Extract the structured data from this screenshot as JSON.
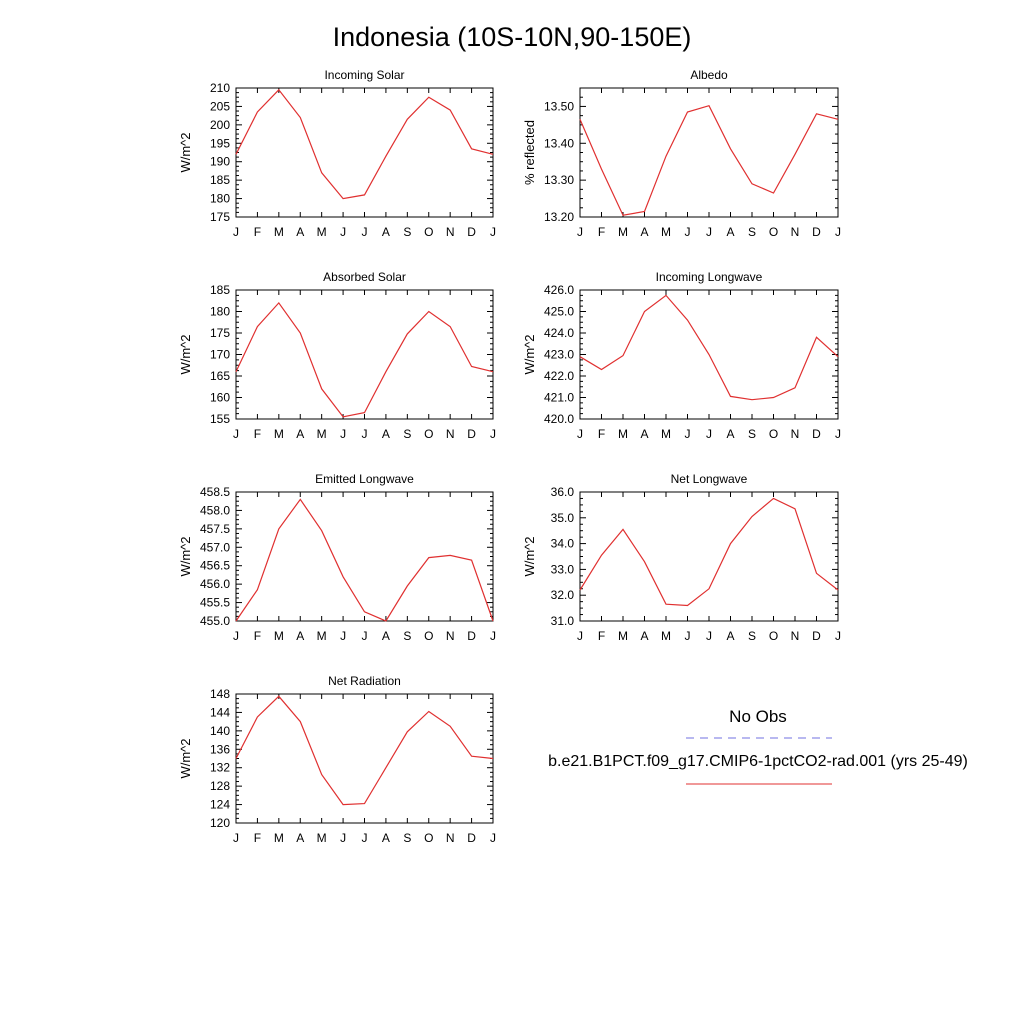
{
  "figure": {
    "title": "Indonesia (10S-10N,90-150E)"
  },
  "legend": {
    "obs_label": "No Obs",
    "obs_color": "#7070e0",
    "model_label": "b.e21.B1PCT.f09_g17.CMIP6-1pctCO2-rad.001 (yrs 25-49)",
    "model_color": "#e03030"
  },
  "chart_data": [
    {
      "type": "line",
      "title": "Incoming Solar",
      "ylabel": "W/m^2",
      "categories": [
        "J",
        "F",
        "M",
        "A",
        "M",
        "J",
        "J",
        "A",
        "S",
        "O",
        "N",
        "D",
        "J"
      ],
      "ylim": [
        175,
        210
      ],
      "yticks": [
        175,
        180,
        185,
        190,
        195,
        200,
        205,
        210
      ],
      "ytick_labels": [
        "175",
        "180",
        "185",
        "190",
        "195",
        "200",
        "205",
        "210"
      ],
      "series": [
        {
          "color": "#e03030",
          "values": [
            192.0,
            203.5,
            209.5,
            202.0,
            187.0,
            180.0,
            181.0,
            191.5,
            201.5,
            207.5,
            204.0,
            193.5,
            192.0
          ]
        }
      ]
    },
    {
      "type": "line",
      "title": "Albedo",
      "ylabel": "% reflected",
      "categories": [
        "J",
        "F",
        "M",
        "A",
        "M",
        "J",
        "J",
        "A",
        "S",
        "O",
        "N",
        "D",
        "J"
      ],
      "ylim": [
        13.2,
        13.55
      ],
      "yticks": [
        13.2,
        13.3,
        13.4,
        13.5
      ],
      "ytick_labels": [
        "13.20",
        "13.30",
        "13.40",
        "13.50"
      ],
      "series": [
        {
          "color": "#e03030",
          "values": [
            13.465,
            13.33,
            13.205,
            13.215,
            13.365,
            13.485,
            13.502,
            13.385,
            13.29,
            13.265,
            13.37,
            13.48,
            13.465
          ]
        }
      ]
    },
    {
      "type": "line",
      "title": "Absorbed Solar",
      "ylabel": "W/m^2",
      "categories": [
        "J",
        "F",
        "M",
        "A",
        "M",
        "J",
        "J",
        "A",
        "S",
        "O",
        "N",
        "D",
        "J"
      ],
      "ylim": [
        155,
        185
      ],
      "yticks": [
        155,
        160,
        165,
        170,
        175,
        180,
        185
      ],
      "ytick_labels": [
        "155",
        "160",
        "165",
        "170",
        "175",
        "180",
        "185"
      ],
      "series": [
        {
          "color": "#e03030",
          "values": [
            166.0,
            176.5,
            182.0,
            175.0,
            162.0,
            155.5,
            156.5,
            166.0,
            174.8,
            180.0,
            176.5,
            167.2,
            166.0
          ]
        }
      ]
    },
    {
      "type": "line",
      "title": "Incoming Longwave",
      "ylabel": "W/m^2",
      "categories": [
        "J",
        "F",
        "M",
        "A",
        "M",
        "J",
        "J",
        "A",
        "S",
        "O",
        "N",
        "D",
        "J"
      ],
      "ylim": [
        420,
        426
      ],
      "yticks": [
        420,
        421,
        422,
        423,
        424,
        425,
        426
      ],
      "ytick_labels": [
        "420.0",
        "421.0",
        "422.0",
        "423.0",
        "424.0",
        "425.0",
        "426.0"
      ],
      "series": [
        {
          "color": "#e03030",
          "values": [
            422.9,
            422.3,
            422.95,
            425.0,
            425.75,
            424.6,
            423.0,
            421.05,
            420.9,
            421.0,
            421.45,
            423.8,
            422.9
          ]
        }
      ]
    },
    {
      "type": "line",
      "title": "Emitted Longwave",
      "ylabel": "W/m^2",
      "categories": [
        "J",
        "F",
        "M",
        "A",
        "M",
        "J",
        "J",
        "A",
        "S",
        "O",
        "N",
        "D",
        "J"
      ],
      "ylim": [
        455,
        458.5
      ],
      "yticks": [
        455,
        455.5,
        456,
        456.5,
        457,
        457.5,
        458,
        458.5
      ],
      "ytick_labels": [
        "455.0",
        "455.5",
        "456.0",
        "456.5",
        "457.0",
        "457.5",
        "458.0",
        "458.5"
      ],
      "series": [
        {
          "color": "#e03030",
          "values": [
            455.0,
            455.85,
            457.5,
            458.3,
            457.45,
            456.2,
            455.25,
            455.0,
            455.95,
            456.72,
            456.78,
            456.65,
            455.0
          ]
        }
      ]
    },
    {
      "type": "line",
      "title": "Net Longwave",
      "ylabel": "W/m^2",
      "categories": [
        "J",
        "F",
        "M",
        "A",
        "M",
        "J",
        "J",
        "A",
        "S",
        "O",
        "N",
        "D",
        "J"
      ],
      "ylim": [
        31,
        36
      ],
      "yticks": [
        31,
        32,
        33,
        34,
        35,
        36
      ],
      "ytick_labels": [
        "31.0",
        "32.0",
        "33.0",
        "34.0",
        "35.0",
        "36.0"
      ],
      "series": [
        {
          "color": "#e03030",
          "values": [
            32.2,
            33.55,
            34.55,
            33.3,
            31.65,
            31.6,
            32.25,
            34.0,
            35.05,
            35.75,
            35.35,
            32.85,
            32.2
          ]
        }
      ]
    },
    {
      "type": "line",
      "title": "Net Radiation",
      "ylabel": "W/m^2",
      "categories": [
        "J",
        "F",
        "M",
        "A",
        "M",
        "J",
        "J",
        "A",
        "S",
        "O",
        "N",
        "D",
        "J"
      ],
      "ylim": [
        120,
        148
      ],
      "yticks": [
        120,
        124,
        128,
        132,
        136,
        140,
        144,
        148
      ],
      "ytick_labels": [
        "120",
        "124",
        "128",
        "132",
        "136",
        "140",
        "144",
        "148"
      ],
      "series": [
        {
          "color": "#e03030",
          "values": [
            134.0,
            143.0,
            147.5,
            142.0,
            130.5,
            124.0,
            124.2,
            132.0,
            139.8,
            144.2,
            141.0,
            134.5,
            134.0
          ]
        }
      ]
    }
  ]
}
